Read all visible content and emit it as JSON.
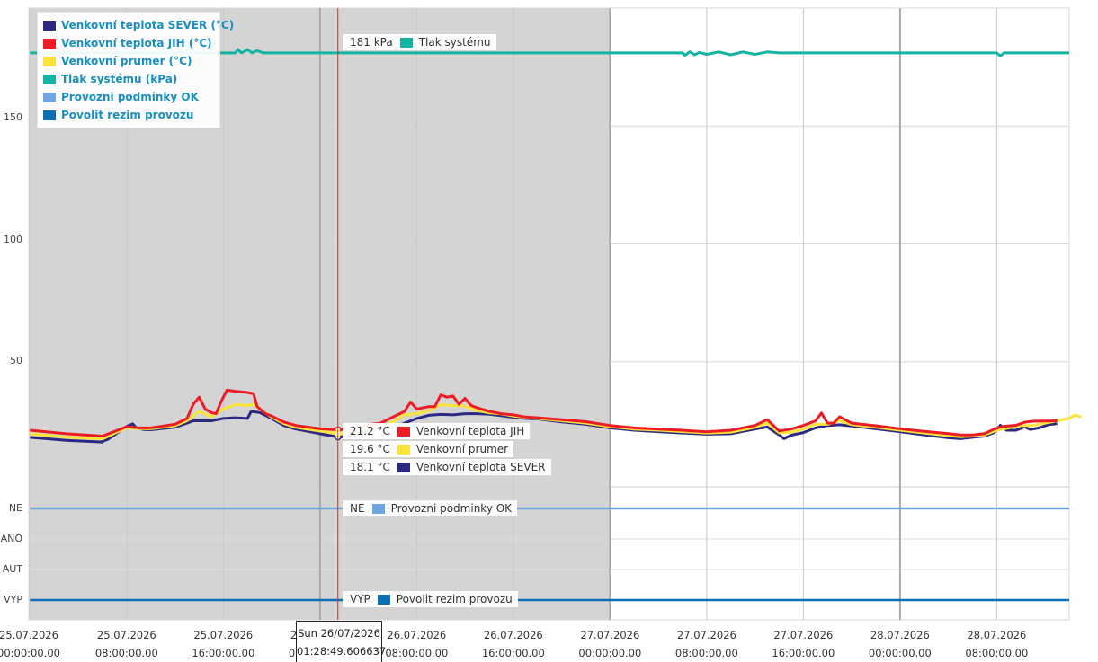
{
  "chart_data": {
    "type": "line",
    "legend": [
      {
        "name": "Venkovní teplota SEVER (°C)",
        "color": "#2b2a80"
      },
      {
        "name": "Venkovní teplota JIH (°C)",
        "color": "#ec1c24"
      },
      {
        "name": "Venkovní prumer (°C)",
        "color": "#fbe33a"
      },
      {
        "name": "Tlak systému (kPa)",
        "color": "#15b3a2"
      },
      {
        "name": "Provozni podminky OK",
        "color": "#6fa6df"
      },
      {
        "name": "Povolit rezim provozu",
        "color": "#0b6fb3"
      }
    ],
    "y_ticks": [
      {
        "label": "150",
        "value": 150
      },
      {
        "label": "100",
        "value": 100
      },
      {
        "label": "50",
        "value": 50
      }
    ],
    "state_ticks": [
      "NE",
      "ANO",
      "AUT",
      "VYP"
    ],
    "x_ticks": [
      {
        "date": "25.07.2026",
        "time": "00:00:00.00",
        "hours": 0
      },
      {
        "date": "25.07.2026",
        "time": "08:00:00.00",
        "hours": 8
      },
      {
        "date": "25.07.2026",
        "time": "16:00:00.00",
        "hours": 16
      },
      {
        "date": "26.07.2026",
        "time": "00:00:00.00",
        "hours": 24
      },
      {
        "date": "26.07.2026",
        "time": "08:00:00.00",
        "hours": 32
      },
      {
        "date": "26.07.2026",
        "time": "16:00:00.00",
        "hours": 40
      },
      {
        "date": "27.07.2026",
        "time": "00:00:00.00",
        "hours": 48
      },
      {
        "date": "27.07.2026",
        "time": "08:00:00.00",
        "hours": 56
      },
      {
        "date": "27.07.2026",
        "time": "16:00:00.00",
        "hours": 64
      },
      {
        "date": "28.07.2026",
        "time": "00:00:00.00",
        "hours": 72
      },
      {
        "date": "28.07.2026",
        "time": "08:00:00.00",
        "hours": 80
      }
    ],
    "ylim": [
      -3,
      200
    ],
    "x_range_hours": [
      -0.1,
      86
    ],
    "shaded_until_hours": 48,
    "cursor": {
      "hours": 25.48,
      "line1": "Sun 26/07/2026",
      "line2": "01:28:49.606637"
    },
    "tooltip": [
      {
        "value": "181 kPa",
        "name": "Tlak systému",
        "color": "#15b3a2"
      },
      {
        "value": "21.2 °C",
        "name": "Venkovní teplota JIH",
        "color": "#ec1c24"
      },
      {
        "value": "19.6 °C",
        "name": "Venkovní prumer",
        "color": "#fbe33a"
      },
      {
        "value": "18.1 °C",
        "name": "Venkovní teplota SEVER",
        "color": "#2b2a80"
      },
      {
        "value": "NE",
        "name": "Provozni podminky OK",
        "color": "#6fa6df"
      },
      {
        "value": "VYP",
        "name": "Povolit rezim provozu",
        "color": "#0b6fb3"
      }
    ],
    "series": [
      {
        "name": "Venkovní teplota SEVER (°C)",
        "color": "#2b2a80",
        "points": [
          [
            0,
            18
          ],
          [
            3,
            16.7
          ],
          [
            6,
            16
          ],
          [
            5.8,
            16
          ],
          [
            6.4,
            17
          ],
          [
            7,
            19
          ],
          [
            8,
            22.6
          ],
          [
            8.5,
            23.7
          ],
          [
            8.8,
            22
          ],
          [
            9.4,
            21.3
          ],
          [
            10,
            21.2
          ],
          [
            12,
            22.3
          ],
          [
            13,
            24
          ],
          [
            13.5,
            25
          ],
          [
            15,
            25
          ],
          [
            16,
            26
          ],
          [
            17,
            26.3
          ],
          [
            18,
            26
          ],
          [
            18.3,
            29
          ],
          [
            19,
            28.5
          ],
          [
            20,
            26
          ],
          [
            21,
            23
          ],
          [
            22,
            21.5
          ],
          [
            24,
            19.5
          ],
          [
            25.5,
            18.1
          ],
          [
            26,
            18.3
          ],
          [
            27,
            19
          ],
          [
            28,
            21.5
          ],
          [
            29,
            22.2
          ],
          [
            30,
            22
          ],
          [
            32,
            26
          ],
          [
            33,
            27.3
          ],
          [
            34,
            27.7
          ],
          [
            35,
            27.5
          ],
          [
            36,
            28
          ],
          [
            37,
            28
          ],
          [
            38,
            27.8
          ],
          [
            40,
            26.5
          ],
          [
            41,
            26
          ],
          [
            42,
            25.8
          ],
          [
            44,
            24.5
          ],
          [
            46,
            23.5
          ],
          [
            48,
            22
          ],
          [
            50,
            21
          ],
          [
            52,
            20.4
          ],
          [
            54,
            19.8
          ],
          [
            56,
            19.3
          ],
          [
            58,
            19.5
          ],
          [
            60,
            21.5
          ],
          [
            61,
            22.4
          ],
          [
            62,
            19
          ],
          [
            62.4,
            17.4
          ],
          [
            63,
            18.9
          ],
          [
            64,
            20
          ],
          [
            65,
            22
          ],
          [
            66,
            23
          ],
          [
            67,
            23.3
          ],
          [
            68,
            22.8
          ],
          [
            70,
            21.6
          ],
          [
            72,
            20.4
          ],
          [
            74,
            19
          ],
          [
            76,
            17.8
          ],
          [
            77,
            17.4
          ],
          [
            78,
            18
          ],
          [
            79,
            18.5
          ],
          [
            79.8,
            20
          ],
          [
            80.3,
            23.1
          ],
          [
            80.8,
            21
          ],
          [
            81.6,
            21
          ],
          [
            82.3,
            22.4
          ],
          [
            82.8,
            21.3
          ],
          [
            83.5,
            22
          ],
          [
            84.3,
            23.4
          ],
          [
            85,
            23.8
          ]
        ]
      },
      {
        "name": "Venkovní teplota JIH (°C)",
        "color": "#ec1c24",
        "points": [
          [
            0,
            21
          ],
          [
            3,
            19.5
          ],
          [
            6,
            18.5
          ],
          [
            7,
            20.5
          ],
          [
            8,
            22.5
          ],
          [
            9,
            22
          ],
          [
            10,
            22
          ],
          [
            12,
            23.5
          ],
          [
            13,
            26
          ],
          [
            13.5,
            32
          ],
          [
            14,
            35
          ],
          [
            14.5,
            30
          ],
          [
            15,
            28.5
          ],
          [
            15.4,
            28
          ],
          [
            15.8,
            33
          ],
          [
            16.3,
            38
          ],
          [
            17,
            37.5
          ],
          [
            18,
            37
          ],
          [
            18.5,
            36.5
          ],
          [
            18.8,
            31
          ],
          [
            19.5,
            28
          ],
          [
            20,
            27
          ],
          [
            21,
            24.5
          ],
          [
            22,
            23
          ],
          [
            24,
            21.6
          ],
          [
            25.5,
            21.2
          ],
          [
            26,
            21.4
          ],
          [
            27,
            22
          ],
          [
            28,
            23.3
          ],
          [
            29,
            24
          ],
          [
            30,
            26.5
          ],
          [
            31,
            29
          ],
          [
            31.5,
            33
          ],
          [
            32,
            30
          ],
          [
            33,
            31
          ],
          [
            33.5,
            31
          ],
          [
            34,
            36
          ],
          [
            34.5,
            35
          ],
          [
            35,
            35.5
          ],
          [
            35.5,
            32
          ],
          [
            36,
            34.5
          ],
          [
            36.5,
            31.5
          ],
          [
            37,
            30.5
          ],
          [
            38,
            29
          ],
          [
            39,
            28
          ],
          [
            40,
            27.5
          ],
          [
            41,
            26.6
          ],
          [
            42,
            26.3
          ],
          [
            44,
            25.5
          ],
          [
            46,
            24.6
          ],
          [
            48,
            23
          ],
          [
            50,
            22
          ],
          [
            52,
            21.5
          ],
          [
            54,
            21
          ],
          [
            56,
            20.3
          ],
          [
            58,
            21
          ],
          [
            60,
            23
          ],
          [
            61,
            25.5
          ],
          [
            62,
            20.7
          ],
          [
            63,
            21.5
          ],
          [
            64,
            23
          ],
          [
            65,
            24.9
          ],
          [
            65.5,
            28.3
          ],
          [
            66,
            24
          ],
          [
            66.5,
            24
          ],
          [
            67,
            26.7
          ],
          [
            68,
            24
          ],
          [
            70,
            22.9
          ],
          [
            72,
            21.6
          ],
          [
            74,
            20.5
          ],
          [
            76,
            19.6
          ],
          [
            77,
            19
          ],
          [
            78,
            19
          ],
          [
            79,
            19.6
          ],
          [
            79.8,
            21.5
          ],
          [
            80.5,
            22.6
          ],
          [
            81.6,
            23.1
          ],
          [
            82.3,
            24.4
          ],
          [
            83,
            24.8
          ],
          [
            84,
            24.9
          ],
          [
            85,
            25
          ]
        ]
      },
      {
        "name": "Venkovní prumer (°C)",
        "color": "#fbe33a",
        "points": [
          [
            0,
            19.5
          ],
          [
            3,
            18.1
          ],
          [
            6,
            17.3
          ],
          [
            7,
            19.7
          ],
          [
            8,
            22
          ],
          [
            9,
            21.7
          ],
          [
            10,
            21.6
          ],
          [
            12,
            22.9
          ],
          [
            13,
            25
          ],
          [
            14,
            29
          ],
          [
            15,
            26.8
          ],
          [
            16,
            30
          ],
          [
            17,
            31.9
          ],
          [
            18,
            31.5
          ],
          [
            18.5,
            32
          ],
          [
            19,
            30
          ],
          [
            20,
            26.5
          ],
          [
            21,
            23.8
          ],
          [
            22,
            22.2
          ],
          [
            24,
            20.6
          ],
          [
            25.5,
            19.6
          ],
          [
            26,
            19.8
          ],
          [
            27,
            20.5
          ],
          [
            28,
            22.4
          ],
          [
            29,
            23.1
          ],
          [
            30,
            24.3
          ],
          [
            31,
            27.5
          ],
          [
            32,
            28
          ],
          [
            33,
            29.2
          ],
          [
            34,
            31.8
          ],
          [
            35,
            31.5
          ],
          [
            36,
            31.2
          ],
          [
            37,
            29.3
          ],
          [
            38,
            28.4
          ],
          [
            39,
            27.9
          ],
          [
            40,
            27
          ],
          [
            42,
            26
          ],
          [
            44,
            25
          ],
          [
            46,
            24
          ],
          [
            48,
            22.5
          ],
          [
            50,
            21.5
          ],
          [
            52,
            21
          ],
          [
            54,
            20.4
          ],
          [
            56,
            19.8
          ],
          [
            58,
            20.2
          ],
          [
            60,
            22.2
          ],
          [
            61,
            24
          ],
          [
            62,
            19.9
          ],
          [
            63,
            20.2
          ],
          [
            64,
            21.5
          ],
          [
            65,
            23.5
          ],
          [
            66,
            23.5
          ],
          [
            67,
            25
          ],
          [
            68,
            23.4
          ],
          [
            70,
            22.2
          ],
          [
            72,
            21
          ],
          [
            74,
            19.8
          ],
          [
            76,
            18.7
          ],
          [
            77,
            18.2
          ],
          [
            78,
            18.5
          ],
          [
            79,
            19
          ],
          [
            80,
            21
          ],
          [
            81,
            22
          ],
          [
            82,
            23
          ],
          [
            83,
            23
          ],
          [
            84,
            24
          ],
          [
            85,
            25
          ],
          [
            86,
            26
          ],
          [
            86.5,
            27.5
          ],
          [
            87,
            26.5
          ]
        ]
      },
      {
        "name": "Tlak systému (kPa)",
        "color": "#15b3a2",
        "points": [
          [
            0,
            181
          ],
          [
            17,
            181
          ],
          [
            17.2,
            182.5
          ],
          [
            17.5,
            181
          ],
          [
            18,
            182.4
          ],
          [
            18.4,
            181
          ],
          [
            18.8,
            182
          ],
          [
            19.3,
            181
          ],
          [
            54,
            181
          ],
          [
            54.2,
            180
          ],
          [
            54.6,
            181.5
          ],
          [
            55,
            180.2
          ],
          [
            55.4,
            181.2
          ],
          [
            56,
            180.4
          ],
          [
            57,
            181.4
          ],
          [
            58,
            180.2
          ],
          [
            59,
            181.4
          ],
          [
            60,
            180.4
          ],
          [
            61,
            181.4
          ],
          [
            62,
            181
          ],
          [
            80,
            181
          ],
          [
            80.3,
            179.7
          ],
          [
            80.6,
            181
          ],
          [
            86,
            181
          ]
        ]
      },
      {
        "name": "Provozni podminky OK",
        "color": "#6fa6df",
        "state": "NE",
        "points": [
          [
            0,
            0
          ],
          [
            86,
            0
          ]
        ]
      },
      {
        "name": "Povolit rezim provozu",
        "color": "#0b6fb3",
        "state": "VYP",
        "points": [
          [
            0,
            0
          ],
          [
            86,
            0
          ]
        ]
      }
    ]
  }
}
